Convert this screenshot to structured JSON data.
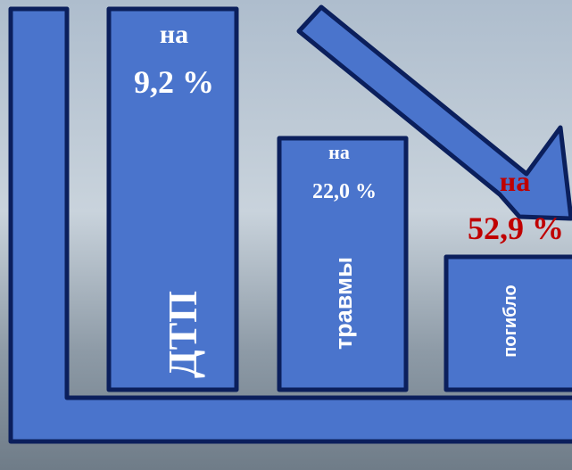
{
  "items": [
    {
      "prefix": "на",
      "value": "9,2 %",
      "label": "ДТП"
    },
    {
      "prefix": "на",
      "value": "22,0 %",
      "label": "травмы"
    },
    {
      "prefix": "на",
      "value": "52,9 %",
      "label": "погибло"
    }
  ]
}
